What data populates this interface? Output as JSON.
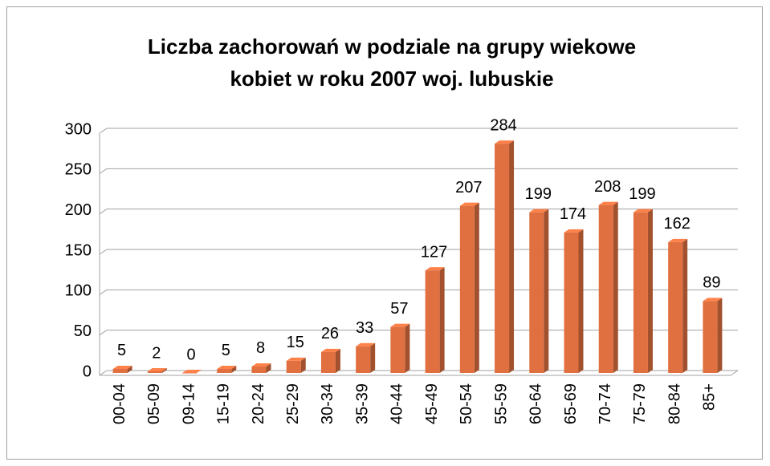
{
  "chart_data": {
    "type": "bar3d",
    "title": [
      "Liczba zachorowań w podziale na  grupy wiekowe",
      "kobiet w roku 2007 woj. lubuskie"
    ],
    "categories": [
      "00-04",
      "05-09",
      "09-14",
      "15-19",
      "20-24",
      "25-29",
      "30-34",
      "35-39",
      "40-44",
      "45-49",
      "50-54",
      "55-59",
      "60-64",
      "65-69",
      "70-74",
      "75-79",
      "80-84",
      "85+"
    ],
    "values": [
      5,
      2,
      0,
      5,
      8,
      15,
      26,
      33,
      57,
      127,
      207,
      284,
      199,
      174,
      208,
      199,
      162,
      89
    ],
    "color": "#e07040",
    "ylim": [
      0,
      300
    ],
    "yticks": [
      0,
      50,
      100,
      150,
      200,
      250,
      300
    ],
    "grid": true
  }
}
